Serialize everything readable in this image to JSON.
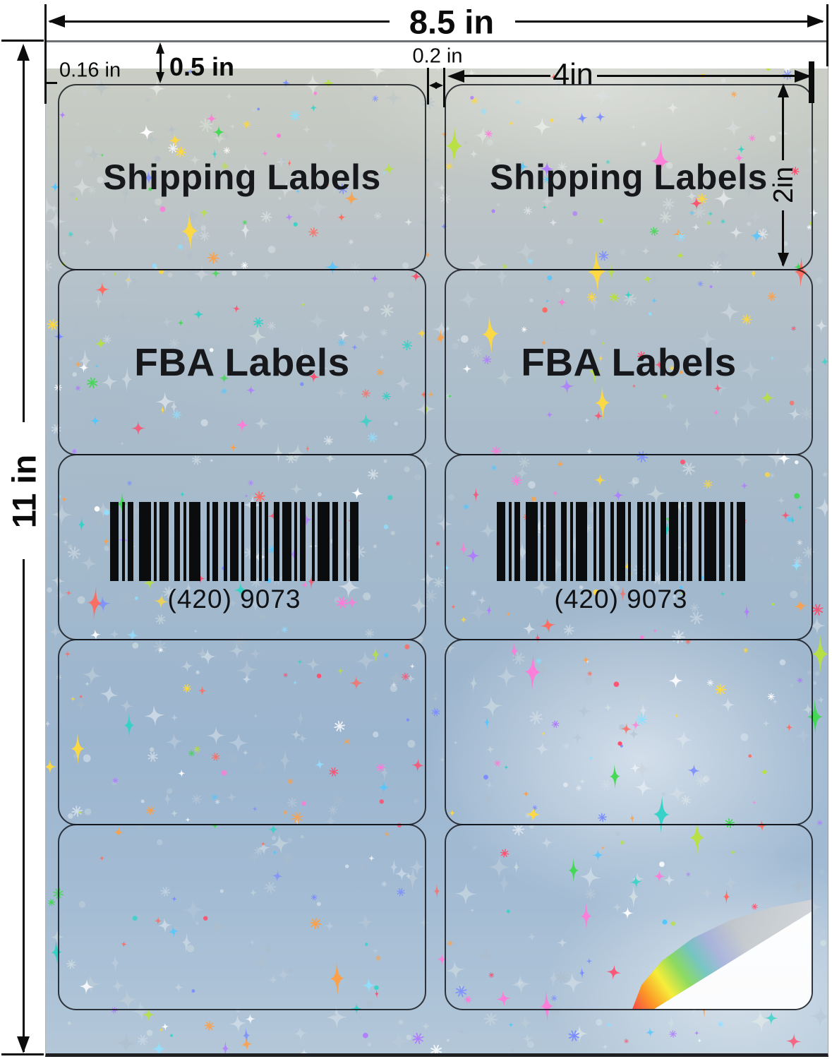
{
  "annotations": {
    "sheet_width": "8.5 in",
    "sheet_height": "11 in",
    "top_margin": "0.5 in",
    "side_margin": "0.16 in",
    "column_gap": "0.2 in",
    "label_width": "4in",
    "label_height": "2in"
  },
  "sheet": {
    "rows": 5,
    "columns": 2,
    "labels": [
      {
        "position": "row1-col1",
        "text": "Shipping Labels"
      },
      {
        "position": "row1-col2",
        "text": "Shipping Labels"
      },
      {
        "position": "row2-col1",
        "text": "FBA Labels"
      },
      {
        "position": "row2-col2",
        "text": "FBA Labels"
      },
      {
        "position": "row3-col1",
        "barcode_text": "(420) 9073"
      },
      {
        "position": "row3-col2",
        "barcode_text": "(420) 9073"
      },
      {
        "position": "row4-col1",
        "text": ""
      },
      {
        "position": "row4-col2",
        "text": ""
      },
      {
        "position": "row5-col1",
        "text": ""
      },
      {
        "position": "row5-col2",
        "text": "",
        "peeled_corner": true
      }
    ]
  },
  "colors": {
    "page_background": "#ffffff",
    "dimension_ink": "#0c0c0c",
    "label_text": "#17181c",
    "cut_line": "#101218",
    "foil_top": "#c9cdc4",
    "foil_middle": "#a4b9cc",
    "foil_bottom": "#b3c7d8",
    "sparkles": [
      "#ff6a5e",
      "#ff9f43",
      "#ffd93d",
      "#b8e23d",
      "#3fd94f",
      "#2fd3c6",
      "#52c7ff",
      "#7a8cff",
      "#b07bff",
      "#ff7ad9",
      "#ff4d6d",
      "#8fe0ff",
      "#ffffff"
    ],
    "faint_sparkles": [
      "#ffffff",
      "#dfe6ea",
      "#c7d2da",
      "#aebdc9",
      "#e8f0e8"
    ]
  }
}
